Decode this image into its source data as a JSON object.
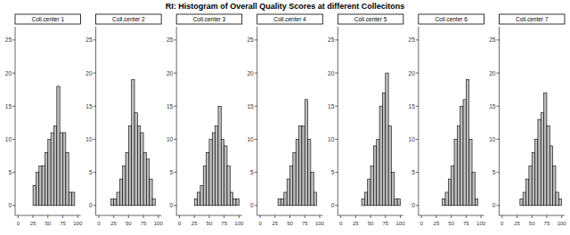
{
  "title": "RI: Histogram of Overall Quality Scores at different Collecitons",
  "chart_data": [
    {
      "type": "histogram",
      "title": "Coll.center 1",
      "color": "#bdbdbd",
      "bins": [
        0,
        5,
        10,
        15,
        20,
        25,
        30,
        35,
        40,
        45,
        50,
        55,
        60,
        65,
        70,
        75,
        80,
        85,
        90,
        95,
        100
      ],
      "values": [
        0,
        0,
        0,
        0,
        0,
        3,
        5,
        6,
        6,
        8,
        10,
        11,
        12,
        18,
        11,
        11,
        8,
        2,
        2,
        0
      ],
      "xlim": [
        -5,
        105
      ],
      "ylim": [
        -1.5,
        27
      ],
      "xticks": [
        0,
        25,
        50,
        75,
        100
      ],
      "yticks": [
        0,
        5,
        10,
        15,
        20,
        25
      ]
    },
    {
      "type": "histogram",
      "title": "Coll.center 2",
      "color": "#bdbdbd",
      "bins": [
        0,
        5,
        10,
        15,
        20,
        25,
        30,
        35,
        40,
        45,
        50,
        55,
        60,
        65,
        70,
        75,
        80,
        85,
        90,
        95,
        100
      ],
      "values": [
        0,
        0,
        0,
        0,
        1,
        1,
        2,
        4,
        6,
        8,
        12,
        19,
        14,
        12,
        11,
        8,
        7,
        4,
        1,
        0
      ],
      "xlim": [
        -5,
        105
      ],
      "ylim": [
        -1.5,
        27
      ],
      "xticks": [
        0,
        25,
        50,
        75,
        100
      ],
      "yticks": [
        0,
        5,
        10,
        15,
        20,
        25
      ]
    },
    {
      "type": "histogram",
      "title": "Coll.center 3",
      "color": "#bdbdbd",
      "bins": [
        0,
        5,
        10,
        15,
        20,
        25,
        30,
        35,
        40,
        45,
        50,
        55,
        60,
        65,
        70,
        75,
        80,
        85,
        90,
        95,
        100
      ],
      "values": [
        0,
        0,
        0,
        0,
        0,
        1,
        2,
        3,
        6,
        8,
        10,
        11,
        12,
        15,
        10,
        9,
        6,
        2,
        1,
        1
      ],
      "xlim": [
        -5,
        105
      ],
      "ylim": [
        -1.5,
        27
      ],
      "xticks": [
        0,
        25,
        50,
        75,
        100
      ],
      "yticks": [
        0,
        5,
        10,
        15,
        20,
        25
      ]
    },
    {
      "type": "histogram",
      "title": "Coll.center 4",
      "color": "#bdbdbd",
      "bins": [
        0,
        5,
        10,
        15,
        20,
        25,
        30,
        35,
        40,
        45,
        50,
        55,
        60,
        65,
        70,
        75,
        80,
        85,
        90,
        95,
        100
      ],
      "values": [
        0,
        0,
        0,
        0,
        0,
        0,
        1,
        1,
        2,
        4,
        6,
        8,
        10,
        12,
        12,
        16,
        10,
        5,
        2,
        0
      ],
      "xlim": [
        -5,
        105
      ],
      "ylim": [
        -1.5,
        27
      ],
      "xticks": [
        0,
        25,
        50,
        75,
        100
      ],
      "yticks": [
        0,
        5,
        10,
        15,
        20,
        25
      ]
    },
    {
      "type": "histogram",
      "title": "Coll.center 5",
      "color": "#bdbdbd",
      "bins": [
        0,
        5,
        10,
        15,
        20,
        25,
        30,
        35,
        40,
        45,
        50,
        55,
        60,
        65,
        70,
        75,
        80,
        85,
        90,
        95,
        100
      ],
      "values": [
        0,
        0,
        0,
        0,
        0,
        0,
        0,
        1,
        2,
        4,
        6,
        9,
        10,
        15,
        17,
        20,
        12,
        5,
        1,
        1
      ],
      "xlim": [
        -5,
        105
      ],
      "ylim": [
        -1.5,
        27
      ],
      "xticks": [
        0,
        25,
        50,
        75,
        100
      ],
      "yticks": [
        0,
        5,
        10,
        15,
        20,
        25
      ]
    },
    {
      "type": "histogram",
      "title": "Coll.center 6",
      "color": "#bdbdbd",
      "bins": [
        0,
        5,
        10,
        15,
        20,
        25,
        30,
        35,
        40,
        45,
        50,
        55,
        60,
        65,
        70,
        75,
        80,
        85,
        90,
        95,
        100
      ],
      "values": [
        0,
        0,
        0,
        0,
        0,
        0,
        0,
        1,
        2,
        4,
        6,
        10,
        12,
        15,
        16,
        19,
        10,
        5,
        1,
        0
      ],
      "xlim": [
        -5,
        105
      ],
      "ylim": [
        -1.5,
        27
      ],
      "xticks": [
        0,
        25,
        50,
        75,
        100
      ],
      "yticks": [
        0,
        5,
        10,
        15,
        20,
        25
      ]
    },
    {
      "type": "histogram",
      "title": "Coll.center 7",
      "color": "#bdbdbd",
      "bins": [
        0,
        5,
        10,
        15,
        20,
        25,
        30,
        35,
        40,
        45,
        50,
        55,
        60,
        65,
        70,
        75,
        80,
        85,
        90,
        95,
        100
      ],
      "values": [
        0,
        0,
        0,
        0,
        0,
        0,
        1,
        2,
        4,
        6,
        8,
        10,
        13,
        14,
        17,
        12,
        9,
        6,
        2,
        1
      ],
      "xlim": [
        -5,
        105
      ],
      "ylim": [
        -1.5,
        27
      ],
      "xticks": [
        0,
        25,
        50,
        75,
        100
      ],
      "yticks": [
        0,
        5,
        10,
        15,
        20,
        25
      ]
    }
  ]
}
